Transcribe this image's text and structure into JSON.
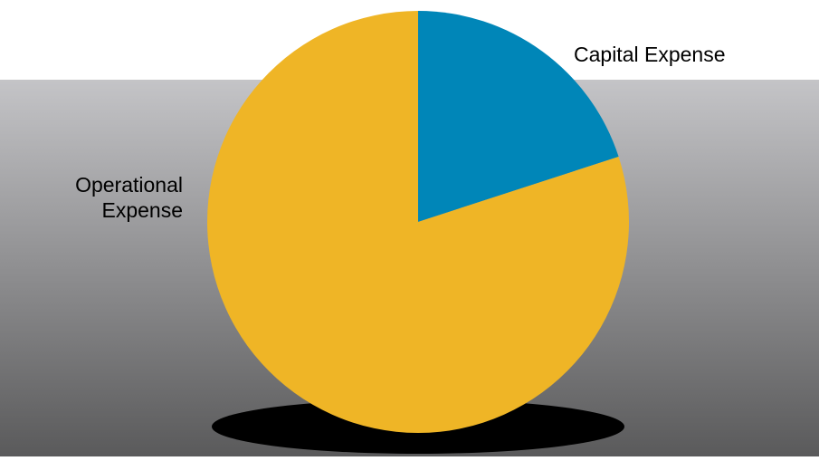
{
  "chart_data": {
    "type": "pie",
    "title": "",
    "slices": [
      {
        "label": "Capital Expense",
        "value": 20,
        "color": "#0086b8"
      },
      {
        "label": "Operational Expense",
        "value": 80,
        "color": "#efb526"
      }
    ],
    "label_lines": {
      "operational": [
        "Operational",
        "Expense"
      ]
    },
    "start_angle": "12 o'clock",
    "direction": "clockwise",
    "shadow": true,
    "background": {
      "style": "vertical-gradient",
      "top_color": "#c4c4c7",
      "bottom_color": "#5a5a5b"
    }
  }
}
